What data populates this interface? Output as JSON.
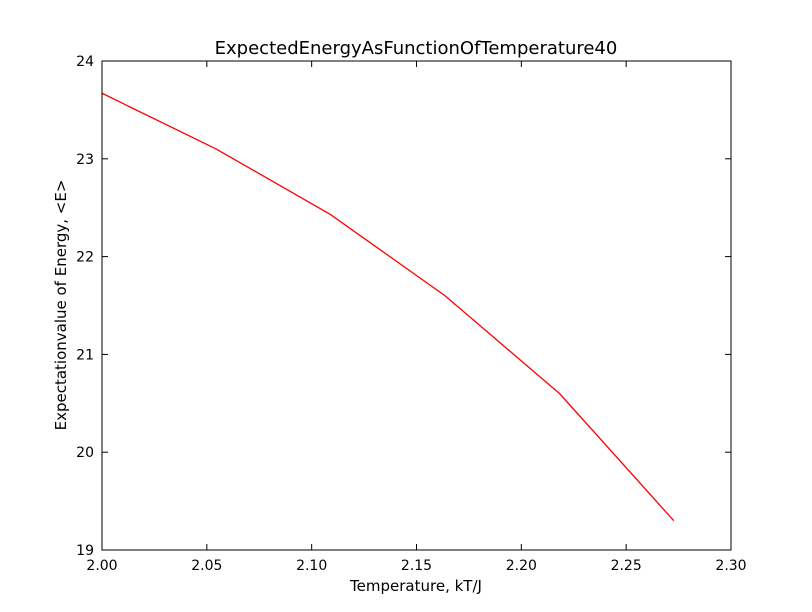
{
  "chart_data": {
    "type": "line",
    "title": "ExpectedEnergyAsFunctionOfTemperature40",
    "xlabel": "Temperature, kT/J",
    "ylabel": "Expectationvalue of Energy, <E>",
    "xlim": [
      2.0,
      2.3
    ],
    "ylim": [
      19,
      24
    ],
    "xticks": [
      "2.00",
      "2.05",
      "2.10",
      "2.15",
      "2.20",
      "2.25",
      "2.30"
    ],
    "yticks": [
      "19",
      "20",
      "21",
      "22",
      "23",
      "24"
    ],
    "grid": false,
    "series": [
      {
        "color": "#ff0000",
        "x": [
          2.0,
          2.0545,
          2.109,
          2.1636,
          2.2182,
          2.2727
        ],
        "y": [
          23.67,
          23.1,
          22.43,
          21.6,
          20.6,
          19.3
        ]
      }
    ]
  }
}
